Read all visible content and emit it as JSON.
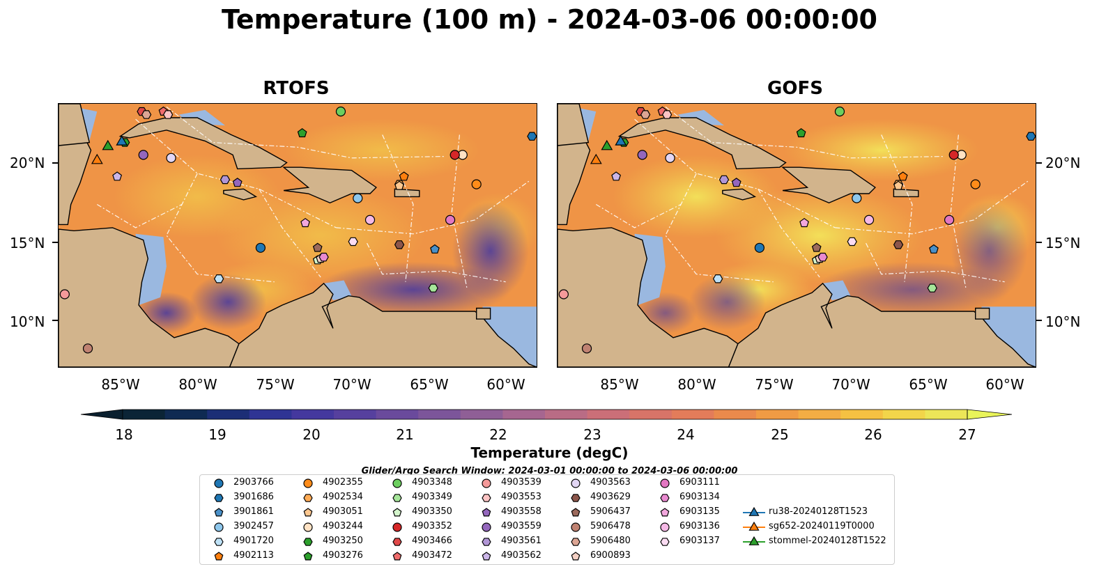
{
  "title": "Temperature (100 m) - 2024-03-06 00:00:00",
  "panels": [
    {
      "title": "RTOFS"
    },
    {
      "title": "GOFS"
    }
  ],
  "lat_labels": [
    "20°N",
    "15°N",
    "10°N"
  ],
  "lon_labels": [
    "85°W",
    "80°W",
    "75°W",
    "70°W",
    "65°W",
    "60°W"
  ],
  "map_extent": {
    "lon_min": -89,
    "lon_max": -58,
    "lat_min": 7,
    "lat_max": 24
  },
  "colorbar": {
    "label": "Temperature (degC)",
    "ticks": [
      "18",
      "19",
      "20",
      "21",
      "22",
      "23",
      "24",
      "25",
      "26",
      "27"
    ],
    "range": [
      18,
      27
    ],
    "colors": [
      "#0b2436",
      "#0f2a52",
      "#1c2e76",
      "#2f3494",
      "#44389e",
      "#56409e",
      "#6a4a9c",
      "#7c559a",
      "#8f5f96",
      "#a66690",
      "#b96c85",
      "#cb6f78",
      "#d87468",
      "#e37c5a",
      "#ea8a4c",
      "#f09b44",
      "#f3ad44",
      "#f5c142",
      "#f2d54a",
      "#ece658"
    ],
    "extend_min_color": "#0a1f2e",
    "extend_max_color": "#e9f45a"
  },
  "search_window": "Glider/Argo Search Window: 2024-03-01 00:00:00 to 2024-03-06 00:00:00",
  "colors": {
    "land": "#d2b48c",
    "shallow": "#9ab8e0",
    "deep_pacific": "#082436",
    "coast": "#000000"
  },
  "legend": [
    {
      "label": "2903766",
      "marker": "circle",
      "color": "#1f77b4"
    },
    {
      "label": "3901686",
      "marker": "hexagon",
      "color": "#1f77b4"
    },
    {
      "label": "3901861",
      "marker": "pentagon",
      "color": "#4a90c8"
    },
    {
      "label": "3902457",
      "marker": "circle",
      "color": "#8ec7ec"
    },
    {
      "label": "4901720",
      "marker": "hexagon",
      "color": "#bfe2f7"
    },
    {
      "label": "4902113",
      "marker": "pentagon",
      "color": "#ff7f0e"
    },
    {
      "label": "4902355",
      "marker": "circle",
      "color": "#ff8c1a"
    },
    {
      "label": "4902534",
      "marker": "hexagon",
      "color": "#ffab55"
    },
    {
      "label": "4903051",
      "marker": "pentagon",
      "color": "#ffc890"
    },
    {
      "label": "4903244",
      "marker": "circle",
      "color": "#ffe2c4"
    },
    {
      "label": "4903250",
      "marker": "hexagon",
      "color": "#2ca02c"
    },
    {
      "label": "4903276",
      "marker": "pentagon",
      "color": "#2ca02c"
    },
    {
      "label": "4903348",
      "marker": "circle",
      "color": "#6ccf5f"
    },
    {
      "label": "4903349",
      "marker": "hexagon",
      "color": "#a6e69a"
    },
    {
      "label": "4903350",
      "marker": "pentagon",
      "color": "#d4f5cc"
    },
    {
      "label": "4903352",
      "marker": "circle",
      "color": "#d62728"
    },
    {
      "label": "4903466",
      "marker": "hexagon",
      "color": "#e04848"
    },
    {
      "label": "4903472",
      "marker": "pentagon",
      "color": "#f06c6c"
    },
    {
      "label": "4903539",
      "marker": "circle",
      "color": "#f59a9a"
    },
    {
      "label": "4903553",
      "marker": "hexagon",
      "color": "#fcc4c4"
    },
    {
      "label": "4903558",
      "marker": "pentagon",
      "color": "#9467bd"
    },
    {
      "label": "4903559",
      "marker": "circle",
      "color": "#9467bd"
    },
    {
      "label": "4903561",
      "marker": "hexagon",
      "color": "#b196d6"
    },
    {
      "label": "4903562",
      "marker": "pentagon",
      "color": "#cbb6e8"
    },
    {
      "label": "4903563",
      "marker": "circle",
      "color": "#e2d6f4"
    },
    {
      "label": "4903629",
      "marker": "hexagon",
      "color": "#8c564b"
    },
    {
      "label": "5906437",
      "marker": "pentagon",
      "color": "#9c6a5c"
    },
    {
      "label": "5906478",
      "marker": "circle",
      "color": "#c08272"
    },
    {
      "label": "5906480",
      "marker": "hexagon",
      "color": "#dca594"
    },
    {
      "label": "6900893",
      "marker": "pentagon",
      "color": "#f4d0c4"
    },
    {
      "label": "6903111",
      "marker": "circle",
      "color": "#e377c2"
    },
    {
      "label": "6903134",
      "marker": "hexagon",
      "color": "#e98ad0"
    },
    {
      "label": "6903135",
      "marker": "pentagon",
      "color": "#f2a7dd"
    },
    {
      "label": "6903136",
      "marker": "circle",
      "color": "#f5b9e6"
    },
    {
      "label": "6903137",
      "marker": "hexagon",
      "color": "#fbdcf2"
    },
    {
      "label": "ru38-20240128T1523",
      "marker": "triangle-line",
      "color": "#1f77b4"
    },
    {
      "label": "sg652-20240119T0000",
      "marker": "triangle-line",
      "color": "#ff7f0e"
    },
    {
      "label": "stommel-20240128T1522",
      "marker": "triangle-line",
      "color": "#2ca02c"
    }
  ],
  "floats": [
    {
      "id": "2903766",
      "lon": -75.9,
      "lat": 14.7
    },
    {
      "id": "3901686",
      "lon": -58.3,
      "lat": 21.9
    },
    {
      "id": "3901861",
      "lon": -64.6,
      "lat": 14.6
    },
    {
      "id": "3902457",
      "lon": -69.6,
      "lat": 17.9
    },
    {
      "id": "4901720",
      "lon": -78.6,
      "lat": 12.7
    },
    {
      "id": "4902113",
      "lon": -66.6,
      "lat": 19.3
    },
    {
      "id": "4902355",
      "lon": -61.9,
      "lat": 18.8
    },
    {
      "id": "4902534",
      "lon": -66.9,
      "lat": 18.8
    },
    {
      "id": "4903051",
      "lon": -66.9,
      "lat": 18.7
    },
    {
      "id": "4903244",
      "lon": -62.8,
      "lat": 20.7
    },
    {
      "id": "4903250",
      "lon": -84.7,
      "lat": 21.5
    },
    {
      "id": "4903276",
      "lon": -73.2,
      "lat": 22.1
    },
    {
      "id": "4903348",
      "lon": -70.7,
      "lat": 23.5
    },
    {
      "id": "4903349",
      "lon": -64.7,
      "lat": 12.1
    },
    {
      "id": "4903350",
      "lon": -72.2,
      "lat": 13.9
    },
    {
      "id": "4903352",
      "lon": -63.3,
      "lat": 20.7
    },
    {
      "id": "4903466",
      "lon": -83.6,
      "lat": 23.5
    },
    {
      "id": "4903472",
      "lon": -82.2,
      "lat": 23.5
    },
    {
      "id": "4903539",
      "lon": -88.6,
      "lat": 11.7
    },
    {
      "id": "4903553",
      "lon": -81.9,
      "lat": 23.3
    },
    {
      "id": "4903558",
      "lon": -77.4,
      "lat": 18.9
    },
    {
      "id": "4903559",
      "lon": -83.5,
      "lat": 20.7
    },
    {
      "id": "4903561",
      "lon": -78.2,
      "lat": 19.1
    },
    {
      "id": "4903562",
      "lon": -85.2,
      "lat": 19.3
    },
    {
      "id": "4903563",
      "lon": -81.7,
      "lat": 20.5
    },
    {
      "id": "4903629",
      "lon": -66.9,
      "lat": 14.9
    },
    {
      "id": "5906437",
      "lon": -72.2,
      "lat": 14.7
    },
    {
      "id": "5906478",
      "lon": -87.1,
      "lat": 8.2
    },
    {
      "id": "5906480",
      "lon": -83.3,
      "lat": 23.3
    },
    {
      "id": "6900893",
      "lon": -72.0,
      "lat": 14.0
    },
    {
      "id": "6903111",
      "lon": -63.6,
      "lat": 16.5
    },
    {
      "id": "6903134",
      "lon": -71.8,
      "lat": 14.1
    },
    {
      "id": "6903135",
      "lon": -73.0,
      "lat": 16.3
    },
    {
      "id": "6903136",
      "lon": -68.8,
      "lat": 16.5
    },
    {
      "id": "6903137",
      "lon": -69.9,
      "lat": 15.1
    }
  ],
  "gliders": [
    {
      "id": "ru38-20240128T1523",
      "lon": -84.9,
      "lat": 21.6
    },
    {
      "id": "sg652-20240119T0000",
      "lon": -86.5,
      "lat": 20.4
    },
    {
      "id": "stommel-20240128T1522",
      "lon": -85.8,
      "lat": 21.3
    }
  ]
}
